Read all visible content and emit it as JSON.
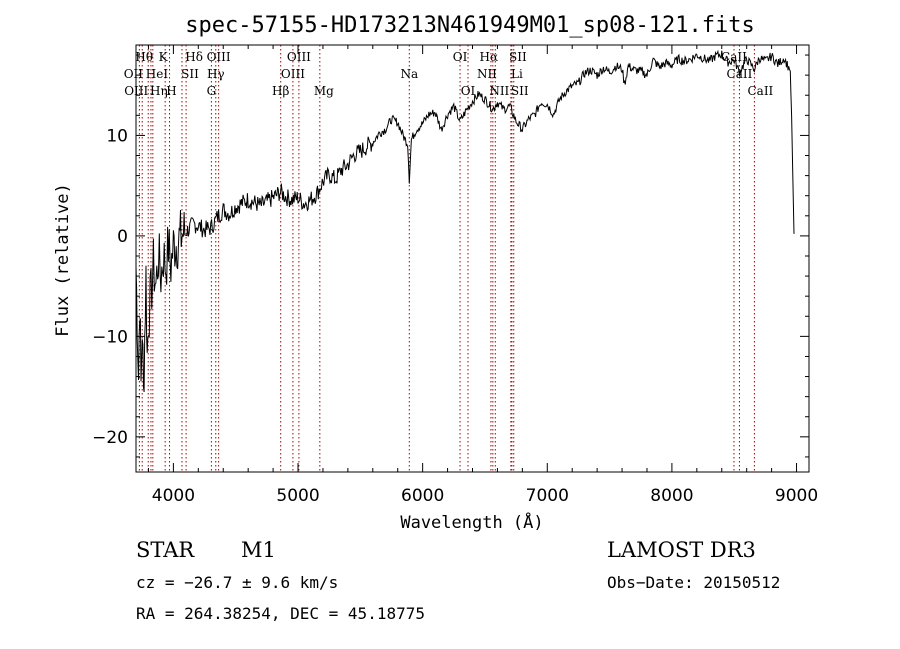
{
  "chart_data": {
    "type": "line",
    "title": "spec-57155-HD173213N461949M01_sp08-121.fits",
    "xlabel": "Wavelength (Å)",
    "ylabel": "Flux (relative)",
    "xlim": [
      3700,
      9100
    ],
    "ylim": [
      -23.5,
      19
    ],
    "xticks": [
      4000,
      5000,
      6000,
      7000,
      8000,
      9000
    ],
    "yticks": [
      -20,
      -10,
      0,
      10
    ],
    "grid": false,
    "series": [
      {
        "x": [
          3700,
          3710,
          3720,
          3730,
          3740,
          3750,
          3760,
          3770,
          3780,
          3790,
          3800,
          3820,
          3840,
          3860,
          3880,
          3900,
          3920,
          3940,
          3960,
          3980,
          4000,
          4040,
          4080,
          4120,
          4160,
          4200,
          4250,
          4300,
          4350,
          4400,
          4450,
          4500,
          4600,
          4700,
          4800,
          4860,
          4900,
          4950,
          5000,
          5050,
          5100,
          5150,
          5200,
          5250,
          5300,
          5350,
          5400,
          5450,
          5500,
          5550,
          5600,
          5650,
          5700,
          5750,
          5800,
          5850,
          5880,
          5893,
          5910,
          5950,
          6000,
          6050,
          6100,
          6150,
          6200,
          6250,
          6300,
          6350,
          6400,
          6450,
          6500,
          6563,
          6600,
          6650,
          6700,
          6750,
          6800,
          6850,
          6900,
          6950,
          7000,
          7050,
          7100,
          7150,
          7200,
          7250,
          7300,
          7350,
          7400,
          7450,
          7500,
          7550,
          7600,
          7620,
          7650,
          7700,
          7750,
          7800,
          7850,
          7900,
          7950,
          8000,
          8050,
          8100,
          8150,
          8200,
          8250,
          8300,
          8350,
          8400,
          8450,
          8500,
          8542,
          8600,
          8662,
          8700,
          8750,
          8800,
          8850,
          8900,
          8950,
          8960,
          8970,
          8980
        ],
        "y": [
          -3,
          -8,
          -14,
          -6,
          -15,
          -9,
          -16,
          -10,
          -4,
          -12,
          -8,
          -6,
          -3,
          -5,
          -2,
          -4,
          -2,
          -3,
          -1,
          -3,
          -1,
          -0.5,
          0.3,
          0.6,
          1.2,
          1.0,
          0.6,
          0.8,
          1.8,
          2.6,
          2.2,
          2.9,
          3.6,
          3.0,
          3.8,
          4.4,
          3.9,
          3.6,
          3.8,
          3.2,
          3.6,
          4.2,
          5.4,
          6.1,
          5.6,
          6.6,
          7.1,
          8.1,
          8.4,
          8.9,
          9.3,
          10.2,
          10.6,
          11.6,
          11.3,
          9.8,
          9.2,
          5.6,
          9.6,
          10.6,
          11.2,
          12.1,
          12.3,
          10.6,
          12.1,
          12.9,
          11.4,
          12.5,
          13.4,
          14.1,
          13.6,
          12.6,
          13.3,
          12.6,
          12.9,
          11.4,
          10.6,
          11.6,
          12.1,
          13.3,
          13.1,
          12.1,
          13.6,
          14.4,
          14.9,
          15.2,
          16.2,
          16.5,
          16.0,
          16.7,
          16.3,
          16.9,
          16.6,
          15.1,
          16.9,
          16.5,
          16.4,
          16.0,
          17.5,
          16.8,
          17.2,
          17.0,
          17.6,
          17.4,
          17.6,
          18.0,
          17.7,
          17.4,
          17.9,
          18.1,
          17.3,
          17.5,
          16.3,
          17.6,
          16.6,
          17.7,
          17.4,
          17.9,
          17.1,
          17.7,
          16.4,
          12.0,
          6.0,
          0.2
        ]
      }
    ],
    "line_markers": [
      {
        "name": "Hθ",
        "wave": 3798
      },
      {
        "name": "OII",
        "wave": 3727
      },
      {
        "name": "OIII",
        "wave": 3750
      },
      {
        "name": "HeI",
        "wave": 3820
      },
      {
        "name": "Hη",
        "wave": 3835
      },
      {
        "name": "K",
        "wave": 3934
      },
      {
        "name": "H",
        "wave": 3969
      },
      {
        "name": "SII",
        "wave": 4069
      },
      {
        "name": "Hδ",
        "wave": 4102
      },
      {
        "name": "OIII",
        "wave": 4363
      },
      {
        "name": "Hγ",
        "wave": 4340
      },
      {
        "name": "G",
        "wave": 4305
      },
      {
        "name": "Hβ",
        "wave": 4861
      },
      {
        "name": "OIII",
        "wave": 5007
      },
      {
        "name": "OIII",
        "wave": 4959
      },
      {
        "name": "Mg",
        "wave": 5175
      },
      {
        "name": "Na",
        "wave": 5893
      },
      {
        "name": "OI",
        "wave": 6300
      },
      {
        "name": "OI",
        "wave": 6364
      },
      {
        "name": "Hα",
        "wave": 6563
      },
      {
        "name": "NII",
        "wave": 6548
      },
      {
        "name": "NII",
        "wave": 6583
      },
      {
        "name": "SII",
        "wave": 6716
      },
      {
        "name": "Li",
        "wave": 6708
      },
      {
        "name": "SII",
        "wave": 6731
      },
      {
        "name": "CaII",
        "wave": 8498
      },
      {
        "name": "CaII",
        "wave": 8542
      },
      {
        "name": "CaII",
        "wave": 8662
      }
    ]
  },
  "info": {
    "object_class": "STAR",
    "subclass": "M1",
    "survey": "LAMOST DR3",
    "cz": "cz = −26.7 ± 9.6 km/s",
    "obs_date": "Obs−Date: 20150512",
    "coords": "RA = 264.38254, DEC =  45.18775"
  }
}
